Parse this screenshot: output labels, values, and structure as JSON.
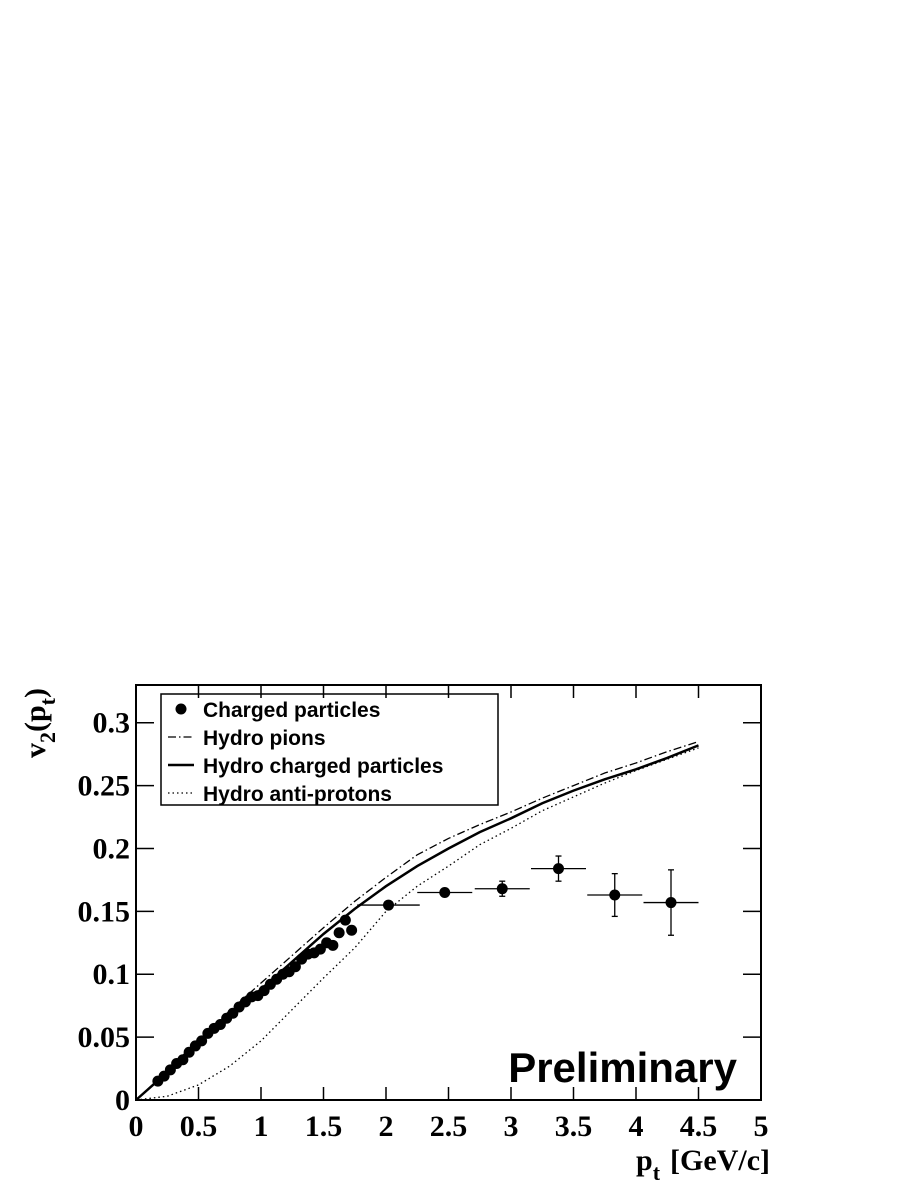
{
  "chart_data": {
    "type": "scatter",
    "xlabel_parts": [
      "p",
      "t",
      "[GeV/c]"
    ],
    "ylabel_parts": [
      "v",
      "2",
      "(p",
      "t",
      ")"
    ],
    "annotation": "Preliminary",
    "xlim": [
      0,
      5
    ],
    "ylim": [
      0,
      0.33
    ],
    "xticks": [
      0,
      0.5,
      1,
      1.5,
      2,
      2.5,
      3,
      3.5,
      4,
      4.5,
      5
    ],
    "yticks": [
      0,
      0.05,
      0.1,
      0.15,
      0.2,
      0.25,
      0.3
    ],
    "legend": "top-left",
    "series": [
      {
        "name": "Charged particles",
        "kind": "points",
        "color": "#000000",
        "x": [
          0.175,
          0.225,
          0.275,
          0.325,
          0.375,
          0.425,
          0.475,
          0.525,
          0.575,
          0.625,
          0.675,
          0.725,
          0.775,
          0.825,
          0.875,
          0.925,
          0.975,
          1.025,
          1.075,
          1.125,
          1.175,
          1.225,
          1.275,
          1.325,
          1.375,
          1.425,
          1.475,
          1.525,
          1.575,
          1.625,
          1.675,
          1.725,
          2.02,
          2.47,
          2.93,
          3.38,
          3.83,
          4.28
        ],
        "values": [
          0.015,
          0.019,
          0.024,
          0.029,
          0.032,
          0.038,
          0.043,
          0.047,
          0.053,
          0.057,
          0.06,
          0.065,
          0.069,
          0.074,
          0.078,
          0.082,
          0.083,
          0.087,
          0.092,
          0.096,
          0.1,
          0.102,
          0.106,
          0.112,
          0.116,
          0.117,
          0.12,
          0.125,
          0.123,
          0.133,
          0.143,
          0.135,
          0.155,
          0.165,
          0.168,
          0.184,
          0.163,
          0.157
        ],
        "xerr": [
          null,
          null,
          null,
          null,
          null,
          null,
          null,
          null,
          null,
          null,
          null,
          null,
          null,
          null,
          null,
          null,
          null,
          null,
          null,
          null,
          null,
          null,
          null,
          null,
          null,
          null,
          null,
          null,
          null,
          null,
          null,
          null,
          0.25,
          0.22,
          0.22,
          0.22,
          0.22,
          0.22
        ],
        "yerr": [
          null,
          null,
          null,
          null,
          null,
          null,
          null,
          null,
          null,
          null,
          null,
          null,
          null,
          null,
          null,
          null,
          null,
          null,
          null,
          null,
          null,
          null,
          null,
          null,
          null,
          null,
          null,
          null,
          null,
          null,
          null,
          null,
          null,
          null,
          0.006,
          0.01,
          0.017,
          0.026
        ]
      },
      {
        "name": "Hydro pions",
        "kind": "line",
        "dash": "dashdot",
        "color": "#000000",
        "x": [
          0,
          0.25,
          0.5,
          0.75,
          1,
          1.25,
          1.5,
          1.75,
          2,
          2.25,
          2.5,
          2.75,
          3,
          3.25,
          3.5,
          3.75,
          4,
          4.25,
          4.5
        ],
        "values": [
          0,
          0.023,
          0.048,
          0.071,
          0.093,
          0.115,
          0.137,
          0.158,
          0.177,
          0.195,
          0.208,
          0.219,
          0.229,
          0.24,
          0.25,
          0.26,
          0.268,
          0.277,
          0.285
        ]
      },
      {
        "name": "Hydro charged particles",
        "kind": "line",
        "dash": "solid",
        "color": "#000000",
        "x": [
          0,
          0.25,
          0.5,
          0.75,
          1,
          1.25,
          1.5,
          1.75,
          2,
          2.25,
          2.5,
          2.75,
          3,
          3.25,
          3.5,
          3.75,
          4,
          4.25,
          4.5
        ],
        "values": [
          0,
          0.022,
          0.045,
          0.067,
          0.088,
          0.11,
          0.132,
          0.152,
          0.17,
          0.186,
          0.2,
          0.213,
          0.224,
          0.236,
          0.246,
          0.255,
          0.263,
          0.272,
          0.282
        ]
      },
      {
        "name": "Hydro anti-protons",
        "kind": "line",
        "dash": "dotted",
        "color": "#000000",
        "x": [
          0,
          0.25,
          0.5,
          0.75,
          1,
          1.25,
          1.5,
          1.75,
          2,
          2.25,
          2.5,
          2.75,
          3,
          3.25,
          3.5,
          3.75,
          4,
          4.25,
          4.5
        ],
        "values": [
          0,
          0.003,
          0.012,
          0.027,
          0.047,
          0.072,
          0.097,
          0.121,
          0.15,
          0.17,
          0.186,
          0.203,
          0.216,
          0.23,
          0.241,
          0.252,
          0.262,
          0.271,
          0.28
        ]
      }
    ]
  }
}
